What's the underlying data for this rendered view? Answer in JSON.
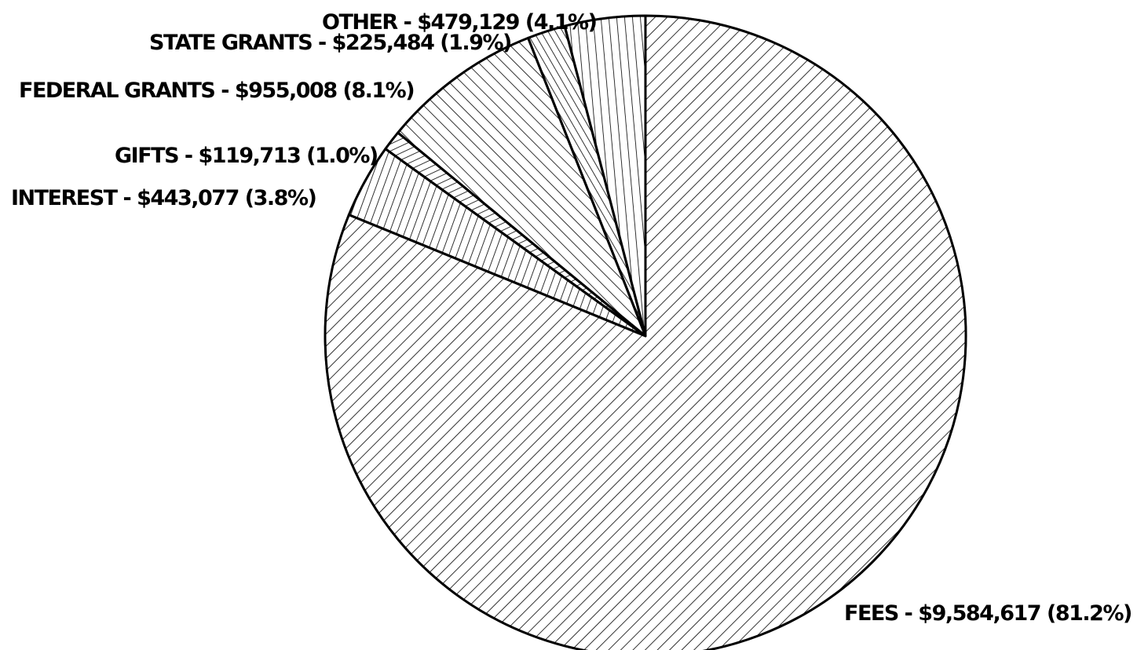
{
  "chart_data": {
    "type": "pie",
    "title": "",
    "start_angle_deg": 90,
    "direction": "clockwise",
    "slices": [
      {
        "category": "FEES",
        "value": 9584617,
        "percent": 81.2,
        "label": "FEES - $9,584,617 (81.2%)"
      },
      {
        "category": "INTEREST",
        "value": 443077,
        "percent": 3.8,
        "label": "INTEREST - $443,077 (3.8%)"
      },
      {
        "category": "GIFTS",
        "value": 119713,
        "percent": 1.0,
        "label": "GIFTS - $119,713 (1.0%)"
      },
      {
        "category": "FEDERAL GRANTS",
        "value": 955008,
        "percent": 8.1,
        "label": "FEDERAL GRANTS - $955,008 (8.1%)"
      },
      {
        "category": "STATE GRANTS",
        "value": 225484,
        "percent": 1.9,
        "label": "STATE GRANTS - $225,484 (1.9%)"
      },
      {
        "category": "OTHER",
        "value": 479129,
        "percent": 4.1,
        "label": "OTHER - $479,129 (4.1%)"
      }
    ],
    "colors": {
      "stroke": "#000000",
      "background": "#ffffff"
    },
    "fill_style": "hatched"
  }
}
